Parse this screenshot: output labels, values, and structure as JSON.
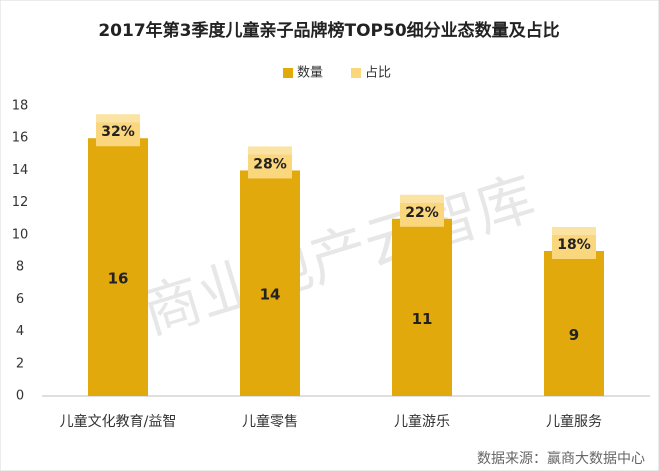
{
  "chart_data": {
    "type": "bar",
    "title": "2017年第3季度儿童亲子品牌榜TOP50细分业态数量及占比",
    "categories": [
      "儿童文化教育/益智",
      "儿童零售",
      "儿童游乐",
      "儿童服务"
    ],
    "series": [
      {
        "name": "数量",
        "color": "#e2a90c",
        "values": [
          16,
          14,
          11,
          9
        ]
      },
      {
        "name": "占比",
        "color": "#fad67c",
        "values": [
          32,
          28,
          22,
          18
        ],
        "value_labels": [
          "32%",
          "28%",
          "22%",
          "18%"
        ]
      }
    ],
    "ylim": [
      0,
      18
    ],
    "yticks": [
      0,
      2,
      4,
      6,
      8,
      10,
      12,
      14,
      16,
      18
    ],
    "grid": false,
    "legend": "top",
    "watermark": "商业地产云智库",
    "source": "数据来源：赢商大数据中心"
  }
}
